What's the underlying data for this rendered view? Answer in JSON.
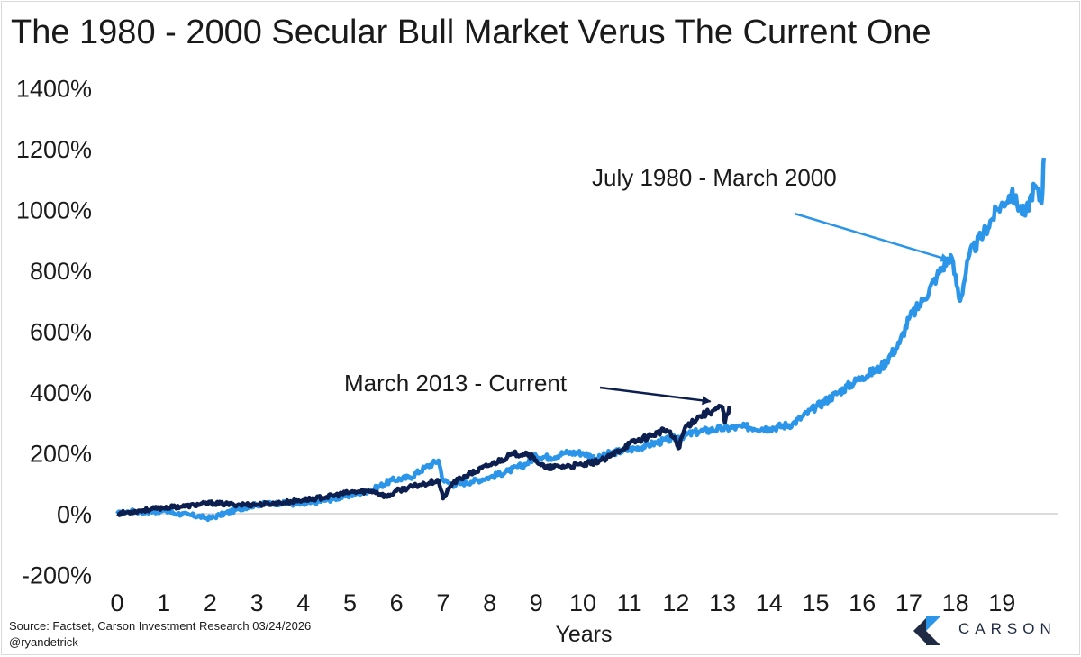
{
  "title": "The 1980 - 2000 Secular Bull Market Verus The Current One",
  "source": "Source: Factset, Carson Investment Research 03/24/2026",
  "handle": "@ryandetrick",
  "logo_text": "CARSON",
  "colors": {
    "series_1980": "#2b95e9",
    "series_2013": "#0d1f4f",
    "zero_line": "#d0d0d0",
    "logo_dark": "#1f2a44",
    "logo_light": "#2b95e9"
  },
  "chart_data": {
    "type": "line",
    "title": "The 1980 - 2000 Secular Bull Market Verus The Current One",
    "xlabel": "Years",
    "ylabel": "",
    "xlim": [
      0,
      19.9
    ],
    "ylim": [
      -200,
      1400
    ],
    "x_ticks": [
      0,
      1,
      2,
      3,
      4,
      5,
      6,
      7,
      8,
      9,
      10,
      11,
      12,
      13,
      14,
      15,
      16,
      17,
      18,
      19
    ],
    "y_ticks": [
      -200,
      0,
      200,
      400,
      600,
      800,
      1000,
      1200,
      1400
    ],
    "y_tick_labels": [
      "-200%",
      "0%",
      "200%",
      "400%",
      "600%",
      "800%",
      "1000%",
      "1200%",
      "1400%"
    ],
    "grid": false,
    "legend": "none",
    "series": [
      {
        "name": "July 1980 - March 2000",
        "points": [
          [
            0,
            0
          ],
          [
            0.3,
            8
          ],
          [
            0.7,
            5
          ],
          [
            1.0,
            10
          ],
          [
            1.3,
            0
          ],
          [
            1.6,
            -5
          ],
          [
            2.0,
            -15
          ],
          [
            2.2,
            -5
          ],
          [
            2.6,
            15
          ],
          [
            3.0,
            30
          ],
          [
            3.5,
            35
          ],
          [
            4.0,
            30
          ],
          [
            4.5,
            45
          ],
          [
            5.0,
            60
          ],
          [
            5.5,
            80
          ],
          [
            5.9,
            110
          ],
          [
            6.3,
            120
          ],
          [
            6.6,
            150
          ],
          [
            6.9,
            175
          ],
          [
            7.0,
            110
          ],
          [
            7.2,
            95
          ],
          [
            7.6,
            105
          ],
          [
            8.0,
            120
          ],
          [
            8.4,
            140
          ],
          [
            8.8,
            165
          ],
          [
            9.0,
            190
          ],
          [
            9.3,
            185
          ],
          [
            9.6,
            200
          ],
          [
            10.0,
            200
          ],
          [
            10.3,
            180
          ],
          [
            10.6,
            200
          ],
          [
            11.0,
            210
          ],
          [
            11.5,
            230
          ],
          [
            12.0,
            250
          ],
          [
            12.5,
            270
          ],
          [
            13.0,
            280
          ],
          [
            13.5,
            285
          ],
          [
            14.0,
            280
          ],
          [
            14.5,
            295
          ],
          [
            15.0,
            350
          ],
          [
            15.5,
            400
          ],
          [
            16.0,
            450
          ],
          [
            16.4,
            480
          ],
          [
            16.8,
            560
          ],
          [
            17.0,
            640
          ],
          [
            17.3,
            700
          ],
          [
            17.6,
            780
          ],
          [
            17.9,
            850
          ],
          [
            18.1,
            700
          ],
          [
            18.3,
            850
          ],
          [
            18.6,
            920
          ],
          [
            18.9,
            1000
          ],
          [
            19.2,
            1050
          ],
          [
            19.5,
            980
          ],
          [
            19.7,
            1080
          ],
          [
            19.85,
            1020
          ],
          [
            19.9,
            1170
          ]
        ]
      },
      {
        "name": "March 2013 - Current",
        "points": [
          [
            0,
            0
          ],
          [
            0.5,
            10
          ],
          [
            1.0,
            20
          ],
          [
            1.5,
            25
          ],
          [
            2.0,
            35
          ],
          [
            2.5,
            30
          ],
          [
            3.0,
            30
          ],
          [
            3.5,
            35
          ],
          [
            4.0,
            45
          ],
          [
            4.5,
            55
          ],
          [
            5.0,
            70
          ],
          [
            5.5,
            75
          ],
          [
            5.8,
            55
          ],
          [
            6.0,
            75
          ],
          [
            6.5,
            95
          ],
          [
            6.9,
            110
          ],
          [
            7.0,
            50
          ],
          [
            7.2,
            100
          ],
          [
            7.5,
            125
          ],
          [
            8.0,
            160
          ],
          [
            8.5,
            195
          ],
          [
            8.8,
            200
          ],
          [
            9.0,
            175
          ],
          [
            9.2,
            150
          ],
          [
            9.5,
            155
          ],
          [
            10.0,
            160
          ],
          [
            10.5,
            180
          ],
          [
            11.0,
            230
          ],
          [
            11.5,
            260
          ],
          [
            11.8,
            275
          ],
          [
            12.0,
            240
          ],
          [
            12.05,
            215
          ],
          [
            12.2,
            285
          ],
          [
            12.5,
            320
          ],
          [
            12.8,
            340
          ],
          [
            13.0,
            350
          ],
          [
            13.05,
            300
          ],
          [
            13.15,
            355
          ]
        ]
      }
    ],
    "annotations": [
      {
        "text": "July 1980 - March 2000",
        "target": [
          17.9,
          840
        ]
      },
      {
        "text": "March 2013 - Current",
        "target": [
          12.7,
          375
        ]
      }
    ]
  }
}
